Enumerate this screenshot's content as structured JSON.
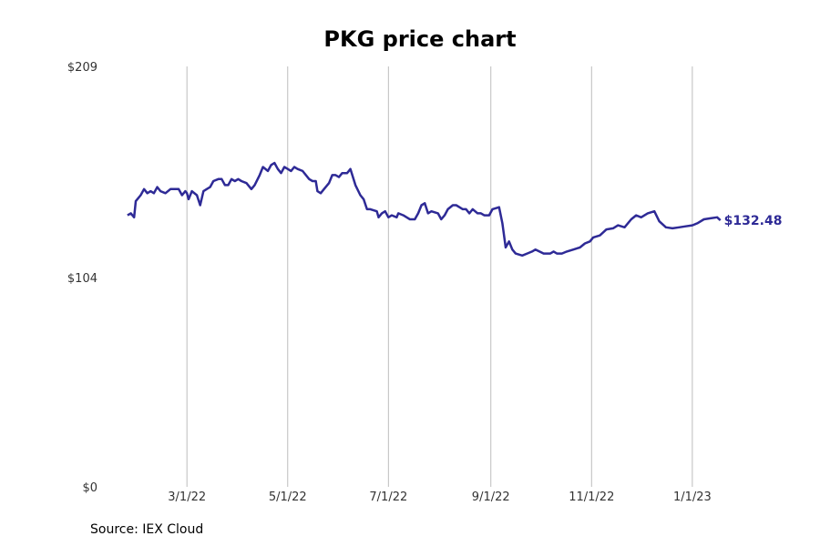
{
  "chart_data": {
    "type": "line",
    "title": "PKG price chart",
    "xlabel": "",
    "ylabel": "",
    "y_ticks": [
      "$0",
      "$104",
      "$209"
    ],
    "y_tick_values": [
      0,
      104,
      209
    ],
    "ylim": [
      0,
      209
    ],
    "xlim": [
      "2022-01-13",
      "2023-02-28"
    ],
    "x_ticks": [
      {
        "label": "3/1/22",
        "date": "2022-03-01"
      },
      {
        "label": "5/1/22",
        "date": "2022-05-01"
      },
      {
        "label": "7/1/22",
        "date": "2022-07-01"
      },
      {
        "label": "9/1/22",
        "date": "2022-09-01"
      },
      {
        "label": "11/1/22",
        "date": "2022-11-01"
      },
      {
        "label": "1/1/23",
        "date": "2023-01-01"
      }
    ],
    "grid": "vertical",
    "last_value_label": "$132.48",
    "line_color": "#2e2a96",
    "series": [
      {
        "points": [
          [
            "2022-01-24",
            135.0
          ],
          [
            "2022-01-26",
            136.0
          ],
          [
            "2022-01-28",
            134.0
          ],
          [
            "2022-01-29",
            142.0
          ],
          [
            "2022-02-01",
            145.0
          ],
          [
            "2022-02-03",
            148.0
          ],
          [
            "2022-02-05",
            146.0
          ],
          [
            "2022-02-07",
            147.0
          ],
          [
            "2022-02-09",
            146.0
          ],
          [
            "2022-02-11",
            149.0
          ],
          [
            "2022-02-13",
            147.0
          ],
          [
            "2022-02-16",
            146.0
          ],
          [
            "2022-02-19",
            148.0
          ],
          [
            "2022-02-24",
            148.0
          ],
          [
            "2022-02-26",
            145.0
          ],
          [
            "2022-02-28",
            147.0
          ],
          [
            "2022-03-01",
            146.0
          ],
          [
            "2022-03-02",
            143.0
          ],
          [
            "2022-03-04",
            147.0
          ],
          [
            "2022-03-07",
            145.0
          ],
          [
            "2022-03-09",
            140.0
          ],
          [
            "2022-03-11",
            147.0
          ],
          [
            "2022-03-13",
            148.0
          ],
          [
            "2022-03-15",
            149.0
          ],
          [
            "2022-03-17",
            152.0
          ],
          [
            "2022-03-20",
            153.0
          ],
          [
            "2022-03-22",
            153.0
          ],
          [
            "2022-03-24",
            150.0
          ],
          [
            "2022-03-26",
            150.0
          ],
          [
            "2022-03-28",
            153.0
          ],
          [
            "2022-03-30",
            152.0
          ],
          [
            "2022-04-01",
            153.0
          ],
          [
            "2022-04-03",
            152.0
          ],
          [
            "2022-04-06",
            151.0
          ],
          [
            "2022-04-09",
            148.0
          ],
          [
            "2022-04-11",
            150.0
          ],
          [
            "2022-04-14",
            155.0
          ],
          [
            "2022-04-16",
            159.0
          ],
          [
            "2022-04-19",
            157.0
          ],
          [
            "2022-04-21",
            160.0
          ],
          [
            "2022-04-23",
            161.0
          ],
          [
            "2022-04-25",
            158.0
          ],
          [
            "2022-04-27",
            156.0
          ],
          [
            "2022-04-29",
            159.0
          ],
          [
            "2022-05-01",
            158.0
          ],
          [
            "2022-05-03",
            157.0
          ],
          [
            "2022-05-05",
            159.0
          ],
          [
            "2022-05-07",
            158.0
          ],
          [
            "2022-05-10",
            157.0
          ],
          [
            "2022-05-14",
            153.0
          ],
          [
            "2022-05-16",
            152.0
          ],
          [
            "2022-05-18",
            152.0
          ],
          [
            "2022-05-19",
            147.0
          ],
          [
            "2022-05-21",
            146.0
          ],
          [
            "2022-05-23",
            148.0
          ],
          [
            "2022-05-26",
            151.0
          ],
          [
            "2022-05-28",
            155.0
          ],
          [
            "2022-05-30",
            155.0
          ],
          [
            "2022-06-01",
            154.0
          ],
          [
            "2022-06-03",
            156.0
          ],
          [
            "2022-06-06",
            156.0
          ],
          [
            "2022-06-08",
            158.0
          ],
          [
            "2022-06-11",
            150.0
          ],
          [
            "2022-06-14",
            145.0
          ],
          [
            "2022-06-16",
            143.0
          ],
          [
            "2022-06-18",
            138.0
          ],
          [
            "2022-06-20",
            138.0
          ],
          [
            "2022-06-24",
            137.0
          ],
          [
            "2022-06-25",
            134.0
          ],
          [
            "2022-06-27",
            136.0
          ],
          [
            "2022-06-29",
            137.0
          ],
          [
            "2022-07-01",
            134.0
          ],
          [
            "2022-07-03",
            135.0
          ],
          [
            "2022-07-06",
            134.0
          ],
          [
            "2022-07-07",
            136.0
          ],
          [
            "2022-07-10",
            135.0
          ],
          [
            "2022-07-12",
            134.0
          ],
          [
            "2022-07-14",
            133.0
          ],
          [
            "2022-07-17",
            133.0
          ],
          [
            "2022-07-19",
            136.0
          ],
          [
            "2022-07-21",
            140.0
          ],
          [
            "2022-07-23",
            141.0
          ],
          [
            "2022-07-25",
            136.0
          ],
          [
            "2022-07-27",
            137.0
          ],
          [
            "2022-07-31",
            136.0
          ],
          [
            "2022-08-02",
            133.0
          ],
          [
            "2022-08-04",
            135.0
          ],
          [
            "2022-08-06",
            138.0
          ],
          [
            "2022-08-09",
            140.0
          ],
          [
            "2022-08-11",
            140.0
          ],
          [
            "2022-08-13",
            139.0
          ],
          [
            "2022-08-15",
            138.0
          ],
          [
            "2022-08-17",
            138.0
          ],
          [
            "2022-08-19",
            136.0
          ],
          [
            "2022-08-21",
            138.0
          ],
          [
            "2022-08-24",
            136.0
          ],
          [
            "2022-08-26",
            136.0
          ],
          [
            "2022-08-28",
            135.0
          ],
          [
            "2022-08-31",
            135.0
          ],
          [
            "2022-09-02",
            138.0
          ],
          [
            "2022-09-06",
            139.0
          ],
          [
            "2022-09-08",
            131.0
          ],
          [
            "2022-09-10",
            119.0
          ],
          [
            "2022-09-12",
            122.0
          ],
          [
            "2022-09-14",
            118.0
          ],
          [
            "2022-09-16",
            116.0
          ],
          [
            "2022-09-20",
            115.0
          ],
          [
            "2022-09-23",
            116.0
          ],
          [
            "2022-09-26",
            117.0
          ],
          [
            "2022-09-28",
            118.0
          ],
          [
            "2022-10-03",
            116.0
          ],
          [
            "2022-10-07",
            116.0
          ],
          [
            "2022-10-09",
            117.0
          ],
          [
            "2022-10-11",
            116.0
          ],
          [
            "2022-10-14",
            116.0
          ],
          [
            "2022-10-17",
            117.0
          ],
          [
            "2022-10-21",
            118.0
          ],
          [
            "2022-10-25",
            119.0
          ],
          [
            "2022-10-28",
            121.0
          ],
          [
            "2022-10-31",
            122.0
          ],
          [
            "2022-11-02",
            124.0
          ],
          [
            "2022-11-06",
            125.0
          ],
          [
            "2022-11-10",
            128.0
          ],
          [
            "2022-11-14",
            128.5
          ],
          [
            "2022-11-17",
            130.0
          ],
          [
            "2022-11-21",
            129.0
          ],
          [
            "2022-11-25",
            133.0
          ],
          [
            "2022-11-28",
            135.0
          ],
          [
            "2022-12-01",
            134.0
          ],
          [
            "2022-12-05",
            136.0
          ],
          [
            "2022-12-09",
            137.0
          ],
          [
            "2022-12-12",
            132.0
          ],
          [
            "2022-12-16",
            129.0
          ],
          [
            "2022-12-20",
            128.5
          ],
          [
            "2022-12-24",
            129.0
          ],
          [
            "2022-12-28",
            129.5
          ],
          [
            "2023-01-01",
            130.0
          ],
          [
            "2023-01-04",
            131.0
          ],
          [
            "2023-01-08",
            133.0
          ],
          [
            "2023-01-12",
            133.5
          ],
          [
            "2023-01-16",
            134.0
          ],
          [
            "2023-01-18",
            132.5
          ]
        ]
      }
    ]
  },
  "source": "Source: IEX Cloud"
}
